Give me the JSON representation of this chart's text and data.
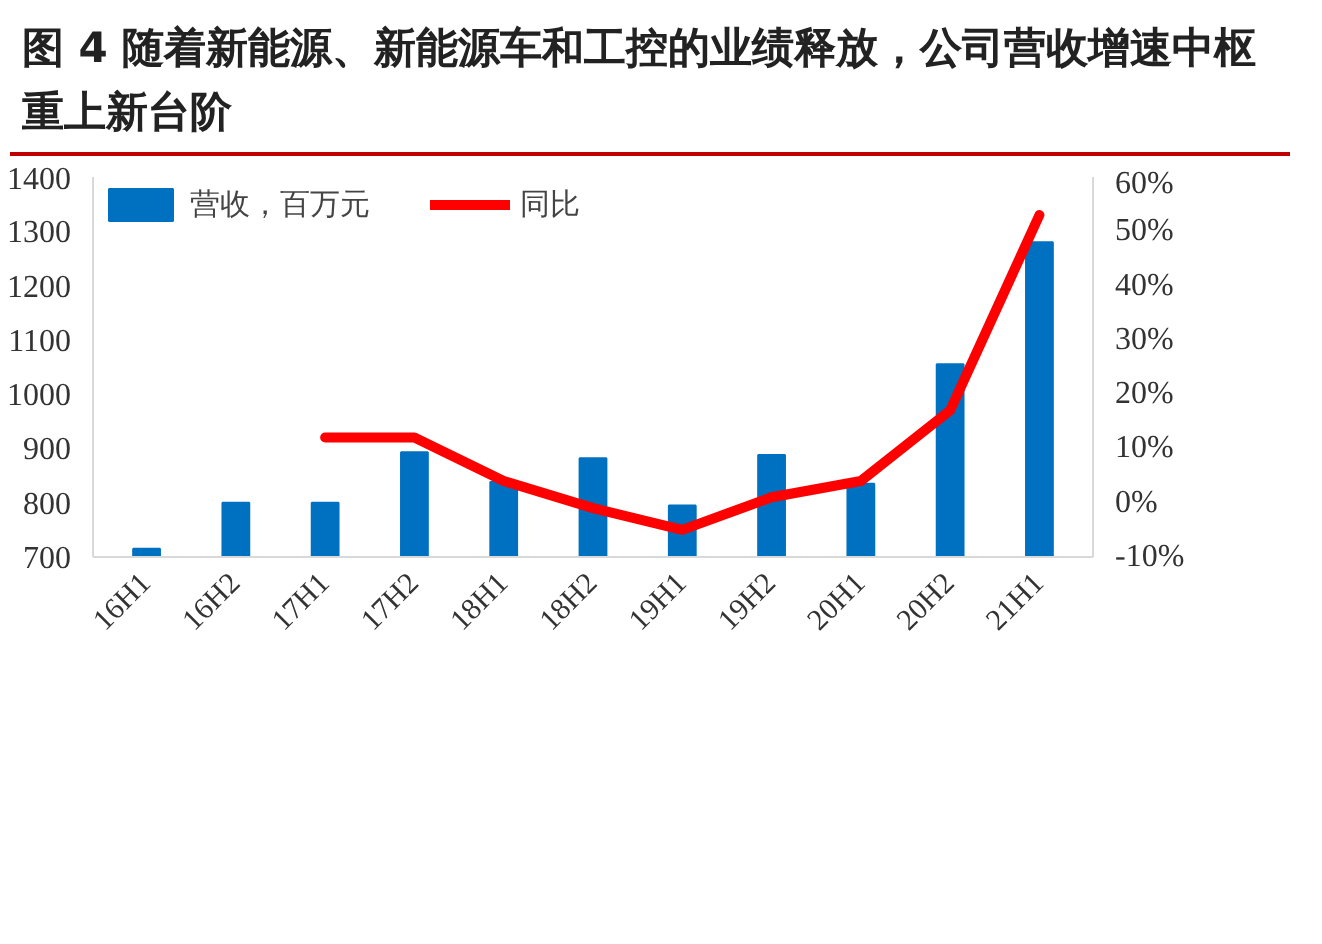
{
  "chart_data": {
    "type": "bar",
    "title": "图 4 随着新能源、新能源车和工控的业绩释放，公司营收增速中枢重上新台阶",
    "categories": [
      "16H1",
      "16H2",
      "17H1",
      "17H2",
      "18H1",
      "18H2",
      "19H1",
      "19H2",
      "20H1",
      "20H2",
      "21H1"
    ],
    "series": [
      {
        "name": "营收，百万元",
        "color": "#0070c0",
        "values": [
          715,
          800,
          800,
          893,
          838,
          882,
          795,
          888,
          835,
          1055,
          1280
        ]
      },
      {
        "name": "同比",
        "color": "#ff0000",
        "type": "line",
        "axis": "y2",
        "values": [
          null,
          null,
          12,
          12,
          4,
          -1,
          -5,
          1,
          4,
          17,
          53
        ]
      }
    ],
    "ylim": [
      700,
      1400
    ],
    "yticks": [
      700,
      800,
      900,
      1000,
      1100,
      1200,
      1300,
      1400
    ],
    "y2lim": [
      -10,
      60
    ],
    "y2ticks": [
      {
        "value": -10,
        "label": "-10%"
      },
      {
        "value": 0,
        "label": "0%"
      },
      {
        "value": 10,
        "label": "10%"
      },
      {
        "value": 20,
        "label": "20%"
      },
      {
        "value": 30,
        "label": "30%"
      },
      {
        "value": 40,
        "label": "40%"
      },
      {
        "value": 50,
        "label": "50%"
      },
      {
        "value": 60,
        "label": "60%"
      }
    ],
    "grid": false,
    "legend": "top left"
  }
}
